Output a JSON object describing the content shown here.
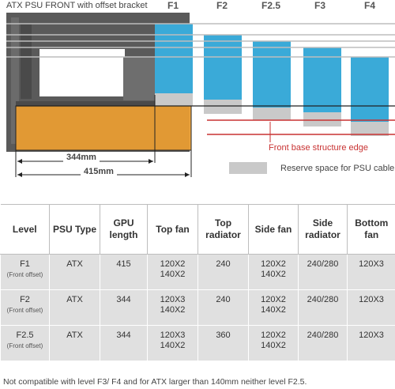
{
  "diagram": {
    "title": "ATX PSU FRONT with offset bracket",
    "levels": [
      "F1",
      "F2",
      "F2.5",
      "F3",
      "F4"
    ],
    "dimension_short": "344mm",
    "dimension_long": "415mm",
    "edge_label": "Front base structure edge",
    "legend_label": "Reserve space for PSU cable",
    "colors": {
      "radiator": "#3aaad8",
      "psu_area": "#f0a030",
      "reserve": "#c9c9c9",
      "edge_line": "#c83232",
      "chassis": "#555555"
    }
  },
  "table": {
    "headers": [
      "Level",
      "PSU Type",
      "GPU length",
      "Top fan",
      "Top radiator",
      "Side fan",
      "Side radiator",
      "Bottom fan"
    ],
    "rows": [
      {
        "level": "F1",
        "level_note": "(Front offset)",
        "psu": "ATX",
        "gpu": "415",
        "top_fan_1": "120X2",
        "top_fan_2": "140X2",
        "top_rad": "240",
        "side_fan_1": "120X2",
        "side_fan_2": "140X2",
        "side_rad": "240/280",
        "bottom_fan": "120X3"
      },
      {
        "level": "F2",
        "level_note": "(Front offset)",
        "psu": "ATX",
        "gpu": "344",
        "top_fan_1": "120X3",
        "top_fan_2": "140X2",
        "top_rad": "240",
        "side_fan_1": "120X2",
        "side_fan_2": "140X2",
        "side_rad": "240/280",
        "bottom_fan": "120X3"
      },
      {
        "level": "F2.5",
        "level_note": "(Front offset)",
        "psu": "ATX",
        "gpu": "344",
        "top_fan_1": "120X3",
        "top_fan_2": "140X2",
        "top_rad": "360",
        "side_fan_1": "120X2",
        "side_fan_2": "140X2",
        "side_rad": "240/280",
        "bottom_fan": "120X3"
      }
    ]
  },
  "note": "Not compatible with level F3/ F4 and for ATX larger than 140mm neither level F2.5."
}
